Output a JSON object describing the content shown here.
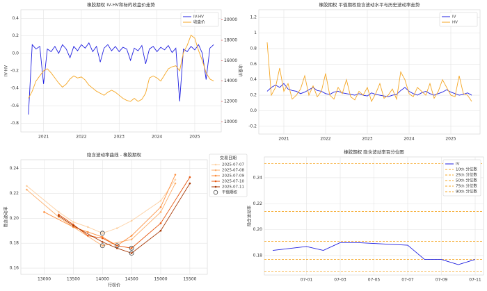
{
  "chart_data": [
    {
      "type": "line",
      "title": "橡胶期权 IV-HV和标的收盘价走势",
      "ylabel": "IV-HV",
      "y2label": "收盘价",
      "y_color": "#1f77b4",
      "y2_color": "#d62728",
      "grid": true,
      "legend": "upper right",
      "x": [
        2020.6,
        2020.7,
        2020.8,
        2020.9,
        2021.0,
        2021.1,
        2021.2,
        2021.3,
        2021.4,
        2021.5,
        2021.6,
        2021.7,
        2021.8,
        2021.9,
        2022.0,
        2022.1,
        2022.2,
        2022.3,
        2022.4,
        2022.5,
        2022.6,
        2022.7,
        2022.8,
        2022.9,
        2023.0,
        2023.1,
        2023.2,
        2023.3,
        2023.4,
        2023.5,
        2023.6,
        2023.7,
        2023.8,
        2023.9,
        2024.0,
        2024.1,
        2024.2,
        2024.3,
        2024.4,
        2024.5,
        2024.6,
        2024.7,
        2024.8,
        2024.9,
        2025.0,
        2025.1,
        2025.2,
        2025.3,
        2025.4,
        2025.5
      ],
      "xlim": [
        2020.4,
        2025.7
      ],
      "xticks": [
        2021,
        2022,
        2023,
        2024,
        2025
      ],
      "ylim": [
        -0.9,
        0.5
      ],
      "yticks": [
        -0.8,
        -0.6,
        -0.4,
        -0.2,
        {
          "value": 0,
          "label": "0.0"
        },
        0.2,
        0.4
      ],
      "y2lim": [
        9000,
        21000
      ],
      "y2ticks": [
        10000,
        12000,
        14000,
        16000,
        18000,
        20000
      ],
      "series": [
        {
          "name": "IV-HV",
          "color": "#1f1fe0",
          "values": [
            -0.7,
            0.1,
            0.05,
            0.08,
            -0.35,
            0.05,
            0.02,
            0.08,
            0.0,
            0.1,
            0.05,
            -0.05,
            0.08,
            0.03,
            0.1,
            0.06,
            0.12,
            0.02,
            0.08,
            -0.1,
            0.06,
            0.1,
            0.03,
            0.08,
            0.02,
            0.07,
            0.05,
            -0.08,
            0.06,
            0.03,
            0.09,
            -0.12,
            0.05,
            0.08,
            0.02,
            0.07,
            0.04,
            0.09,
            0.01,
            0.06,
            -0.55,
            0.05,
            0.02,
            0.08,
            0.04,
            0.1,
            0.0,
            -0.3,
            0.06,
            0.1
          ]
        },
        {
          "name": "收盘价",
          "color": "#f5a623",
          "axis": "y2",
          "values": [
            12300,
            13000,
            14000,
            14500,
            15000,
            15200,
            14800,
            14300,
            13800,
            13400,
            13700,
            14200,
            14500,
            14300,
            14400,
            14100,
            13600,
            13300,
            13000,
            12800,
            12600,
            12900,
            13100,
            12900,
            12600,
            12300,
            12100,
            12000,
            12300,
            12000,
            12200,
            12800,
            14300,
            14500,
            14300,
            14000,
            14600,
            15200,
            15400,
            15500,
            15000,
            16800,
            17500,
            18500,
            18200,
            17000,
            16000,
            14800,
            14200,
            14000
          ]
        }
      ]
    },
    {
      "type": "line",
      "title": "橡胶期权 平值期权隐含波动水平与历史波动率走势",
      "grid": true,
      "legend": "upper right",
      "x": [
        2020.6,
        2020.7,
        2020.8,
        2020.9,
        2021.0,
        2021.1,
        2021.2,
        2021.3,
        2021.4,
        2021.5,
        2021.6,
        2021.7,
        2021.8,
        2021.9,
        2022.0,
        2022.1,
        2022.2,
        2022.3,
        2022.4,
        2022.5,
        2022.6,
        2022.7,
        2022.8,
        2022.9,
        2023.0,
        2023.1,
        2023.2,
        2023.3,
        2023.4,
        2023.5,
        2023.6,
        2023.7,
        2023.8,
        2023.9,
        2024.0,
        2024.1,
        2024.2,
        2024.3,
        2024.4,
        2024.5,
        2024.6,
        2024.7,
        2024.8,
        2024.9,
        2025.0,
        2025.1,
        2025.2,
        2025.3,
        2025.4,
        2025.5
      ],
      "xlim": [
        2020.4,
        2025.7
      ],
      "xticks": [
        2021,
        2022,
        2023,
        2024,
        2025
      ],
      "ylim": [
        -0.3,
        1.3
      ],
      "yticks": [
        -0.2,
        {
          "value": 0,
          "label": "0.0"
        },
        0.2,
        0.4,
        0.6,
        0.8,
        1.0,
        1.2
      ],
      "series": [
        {
          "name": "IV",
          "color": "#1f1fe0",
          "values": [
            0.25,
            0.3,
            0.33,
            0.3,
            0.35,
            0.28,
            0.26,
            0.25,
            0.22,
            0.24,
            0.27,
            0.3,
            0.26,
            0.25,
            0.22,
            0.21,
            0.24,
            0.25,
            0.23,
            0.22,
            0.21,
            0.2,
            0.22,
            0.2,
            0.19,
            0.23,
            0.21,
            0.2,
            0.19,
            0.18,
            0.2,
            0.21,
            0.26,
            0.3,
            0.25,
            0.22,
            0.2,
            0.23,
            0.25,
            0.22,
            0.2,
            0.22,
            0.24,
            0.27,
            0.24,
            0.22,
            0.2,
            0.21,
            0.23,
            0.2
          ]
        },
        {
          "name": "HV",
          "color": "#f5a623",
          "values": [
            0.88,
            0.2,
            0.3,
            0.55,
            0.25,
            0.35,
            0.15,
            0.2,
            0.28,
            0.45,
            0.2,
            0.32,
            0.18,
            0.25,
            0.48,
            0.2,
            0.15,
            0.3,
            0.22,
            0.4,
            0.18,
            0.14,
            0.25,
            0.2,
            0.3,
            0.12,
            0.22,
            0.35,
            0.16,
            0.2,
            0.28,
            0.15,
            0.5,
            0.4,
            0.22,
            0.18,
            0.3,
            0.25,
            0.2,
            0.35,
            0.16,
            0.25,
            0.4,
            0.3,
            0.2,
            0.18,
            0.45,
            0.22,
            0.2,
            0.12
          ]
        }
      ]
    },
    {
      "type": "line",
      "title": "隐含波动率曲线 - 橡胶期权",
      "xlabel": "行权价",
      "ylabel": "隐含波动率",
      "grid": true,
      "legend": "outside right",
      "legend_title": "交易日期",
      "xlim": [
        12600,
        15800
      ],
      "xticks": [
        13000,
        13500,
        14000,
        14500,
        15000,
        15500
      ],
      "ylim": [
        0.155,
        0.247
      ],
      "yticks": [
        0.16,
        0.18,
        {
          "value": 0.2,
          "label": "0.20"
        },
        0.22,
        0.24
      ],
      "series": [
        {
          "name": "2025-07-07",
          "color": "#fdd0a2",
          "marker": true,
          "x": [
            12700,
            13250,
            13500,
            13750,
            14000,
            14250,
            14500,
            15000,
            15250
          ],
          "values": [
            0.226,
            0.205,
            0.197,
            0.193,
            0.188,
            0.192,
            0.198,
            0.214,
            0.231
          ]
        },
        {
          "name": "2025-07-08",
          "color": "#fdae6b",
          "marker": true,
          "x": [
            12700,
            13250,
            13500,
            14000,
            14500,
            15000,
            15250
          ],
          "values": [
            0.223,
            0.201,
            0.193,
            0.178,
            0.183,
            0.205,
            0.228
          ]
        },
        {
          "name": "2025-07-09",
          "color": "#fd8d3c",
          "marker": true,
          "x": [
            13000,
            13500,
            13750,
            14000,
            14250,
            14500,
            15000,
            15250
          ],
          "values": [
            0.205,
            0.193,
            0.189,
            0.185,
            0.178,
            0.186,
            0.209,
            0.235
          ]
        },
        {
          "name": "2025-07-10",
          "color": "#e6550d",
          "marker": true,
          "x": [
            13250,
            13500,
            13750,
            14000,
            14250,
            14500,
            15000,
            15500
          ],
          "values": [
            0.203,
            0.195,
            0.186,
            0.184,
            0.178,
            0.176,
            0.196,
            0.233
          ]
        },
        {
          "name": "2025-07-11",
          "color": "#a63603",
          "marker": true,
          "x": [
            13250,
            13500,
            14000,
            14250,
            14500,
            15000,
            15500
          ],
          "values": [
            0.202,
            0.194,
            0.181,
            0.176,
            0.172,
            0.19,
            0.228
          ]
        },
        {
          "name": "平值期权",
          "color": "#444444",
          "style": "markers",
          "x": [
            14000,
            14000,
            14250,
            14500,
            14500
          ],
          "values": [
            0.188,
            0.178,
            0.178,
            0.176,
            0.172
          ]
        }
      ]
    },
    {
      "type": "line",
      "title": "橡胶期权 隐含波动率百分位图",
      "ylabel": "隐含波动率",
      "grid": true,
      "legend": "upper right",
      "x": [
        "06-30",
        "07-01",
        "07-02",
        "07-03",
        "07-04",
        "07-07",
        "07-08",
        "07-09",
        "07-10",
        "07-11"
      ],
      "xlim": [
        "06-30",
        "07-11"
      ],
      "xticks": [
        "07-01",
        "07-03",
        "07-05",
        "07-07",
        "07-09",
        "07-11"
      ],
      "ylim": [
        0.165,
        0.256
      ],
      "yticks": [
        0.18,
        {
          "value": 0.2,
          "label": "0.20"
        },
        0.22,
        0.24
      ],
      "series": [
        {
          "name": "IV",
          "color": "#1f1fe0",
          "values": [
            0.184,
            0.187,
            0.184,
            0.19,
            0.19,
            0.188,
            0.177,
            0.177,
            0.173,
            0.177
          ]
        }
      ],
      "reference_lines": [
        {
          "name": "10th 分位数",
          "color": "#f5a623",
          "value": 0.168
        },
        {
          "name": "25th 分位数",
          "color": "#f5a623",
          "value": 0.177
        },
        {
          "name": "50th 分位数",
          "color": "#f5a623",
          "value": 0.191
        },
        {
          "name": "75th 分位数",
          "color": "#f5a623",
          "value": 0.214
        },
        {
          "name": "90th 分位数",
          "color": "#f5a623",
          "value": 0.251
        }
      ]
    }
  ]
}
